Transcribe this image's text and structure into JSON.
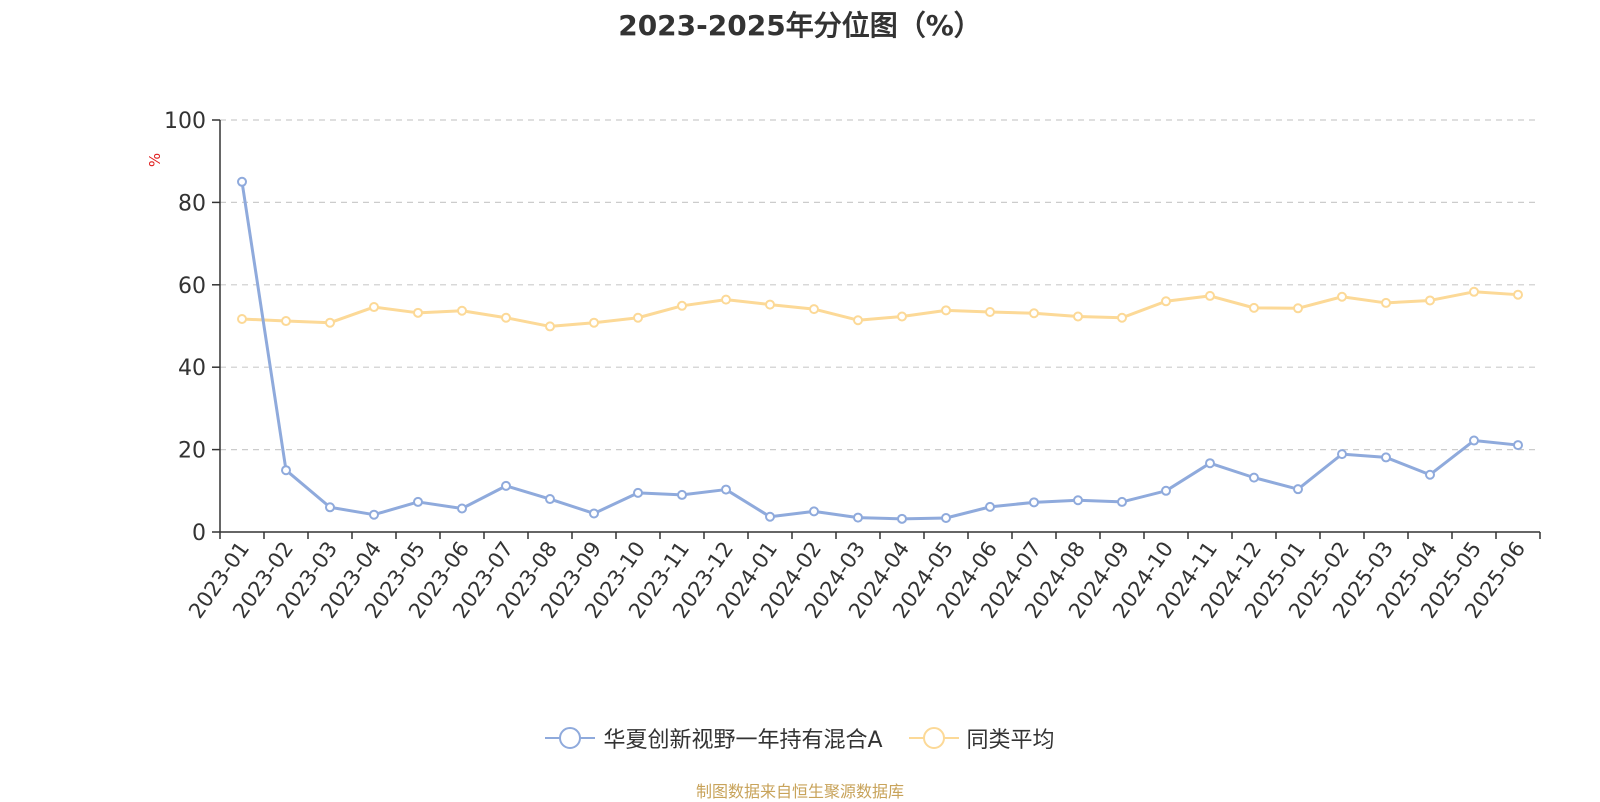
{
  "chart_data": {
    "type": "line",
    "title": "2023-2025年分位图（%）",
    "ylabel": "%",
    "ylim": [
      0,
      100
    ],
    "yticks": [
      0,
      20,
      40,
      60,
      80,
      100
    ],
    "grid": true,
    "legend_position": "bottom",
    "categories": [
      "2023-01",
      "2023-02",
      "2023-03",
      "2023-04",
      "2023-05",
      "2023-06",
      "2023-07",
      "2023-08",
      "2023-09",
      "2023-10",
      "2023-11",
      "2023-12",
      "2024-01",
      "2024-02",
      "2024-03",
      "2024-04",
      "2024-05",
      "2024-06",
      "2024-07",
      "2024-08",
      "2024-09",
      "2024-10",
      "2024-11",
      "2024-12",
      "2025-01",
      "2025-02",
      "2025-03",
      "2025-04",
      "2025-05",
      "2025-06"
    ],
    "series": [
      {
        "name": "华夏创新视野一年持有混合A",
        "color": "#8faadc",
        "values": [
          85,
          15,
          6,
          4.2,
          7.3,
          5.7,
          11.2,
          8,
          4.5,
          9.5,
          9,
          10.3,
          3.7,
          5,
          3.5,
          3.2,
          3.4,
          6.1,
          7.2,
          7.7,
          7.3,
          10,
          16.7,
          13.2,
          10.4,
          18.9,
          18.1,
          13.9,
          22.2,
          21.1
        ]
      },
      {
        "name": "同类平均",
        "color": "#fcd997",
        "values": [
          51.7,
          51.2,
          50.8,
          54.6,
          53.2,
          53.7,
          52,
          49.9,
          50.8,
          52,
          54.9,
          56.4,
          55.2,
          54.1,
          51.4,
          52.3,
          53.8,
          53.4,
          53.1,
          52.3,
          52,
          56,
          57.3,
          54.4,
          54.3,
          57.1,
          55.6,
          56.2,
          58.3,
          57.6
        ]
      }
    ]
  },
  "source_note": "制图数据来自恒生聚源数据库"
}
